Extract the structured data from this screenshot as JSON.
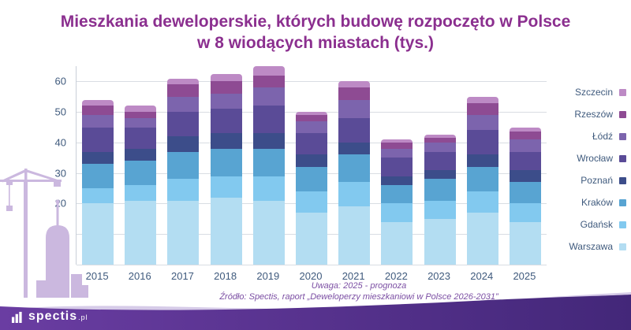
{
  "header": {
    "title_line1": "Mieszkania deweloperskie, których budowę rozpoczęto w Polsce",
    "title_line2": "w 8 wiodących miastach (tys.)"
  },
  "notes": {
    "line1": "Uwaga: 2025 - prognoza",
    "line2": "Źródło: Spectis, raport „Deweloperzy mieszkaniowi w Polsce 2026-2031”"
  },
  "footer": {
    "logo_text": "spectis",
    "logo_suffix": ".pl"
  },
  "colors": {
    "title_text": "#8b2f8f",
    "axis_text": "#3f5a7d",
    "note_text": "#7b4ea3",
    "gridline": "#d9dde3",
    "silhouette": "#cbb8df",
    "footer_wave_light": "#b5a0d6",
    "footer_gradient_start": "#6a3da2",
    "footer_gradient_end": "#432779",
    "logo_text": "#ffffff"
  },
  "chart_data": {
    "type": "bar",
    "stacked": true,
    "title": "Mieszkania deweloperskie, których budowę rozpoczęto w Polsce w 8 wiodących miastach (tys.)",
    "xlabel": "",
    "ylabel": "",
    "ylim": [
      0,
      65
    ],
    "yticks": [
      0,
      10,
      20,
      30,
      40,
      50,
      60
    ],
    "grid": true,
    "legend_position": "right",
    "categories": [
      "2015",
      "2016",
      "2017",
      "2018",
      "2019",
      "2020",
      "2021",
      "2022",
      "2023",
      "2024",
      "2025"
    ],
    "series": [
      {
        "name": "Warszawa",
        "color": "#b3ddf2",
        "values": [
          20,
          21,
          21,
          22,
          21,
          17,
          19,
          14,
          15,
          17,
          14
        ]
      },
      {
        "name": "Gdańsk",
        "color": "#82c9ef",
        "values": [
          5,
          5,
          7,
          7,
          8,
          7,
          8,
          6,
          6,
          7,
          6
        ]
      },
      {
        "name": "Kraków",
        "color": "#58a4d2",
        "values": [
          8,
          8,
          9,
          9,
          9,
          8,
          9,
          6,
          7,
          8,
          7
        ]
      },
      {
        "name": "Poznań",
        "color": "#3c4d8a",
        "values": [
          4,
          4,
          5,
          5,
          5,
          4,
          4,
          3,
          3,
          4,
          4
        ]
      },
      {
        "name": "Wrocław",
        "color": "#5a4b97",
        "values": [
          8,
          7,
          8,
          8,
          9,
          7,
          8,
          6,
          6,
          8,
          6
        ]
      },
      {
        "name": "Łódź",
        "color": "#7c64ad",
        "values": [
          4,
          3,
          5,
          5,
          6,
          4,
          6,
          3,
          3,
          5,
          4
        ]
      },
      {
        "name": "Rzeszów",
        "color": "#8e4b93",
        "values": [
          3,
          2,
          4,
          4,
          4,
          2,
          4,
          2,
          1.5,
          4,
          2.5
        ]
      },
      {
        "name": "Szczecin",
        "color": "#bd8ac5",
        "values": [
          2,
          2,
          2,
          2.5,
          3,
          1,
          2,
          1,
          1,
          2,
          1.5
        ]
      }
    ],
    "totals": [
      54,
      52,
      61,
      62.5,
      65,
      50,
      60,
      41,
      42.5,
      55,
      45
    ]
  }
}
